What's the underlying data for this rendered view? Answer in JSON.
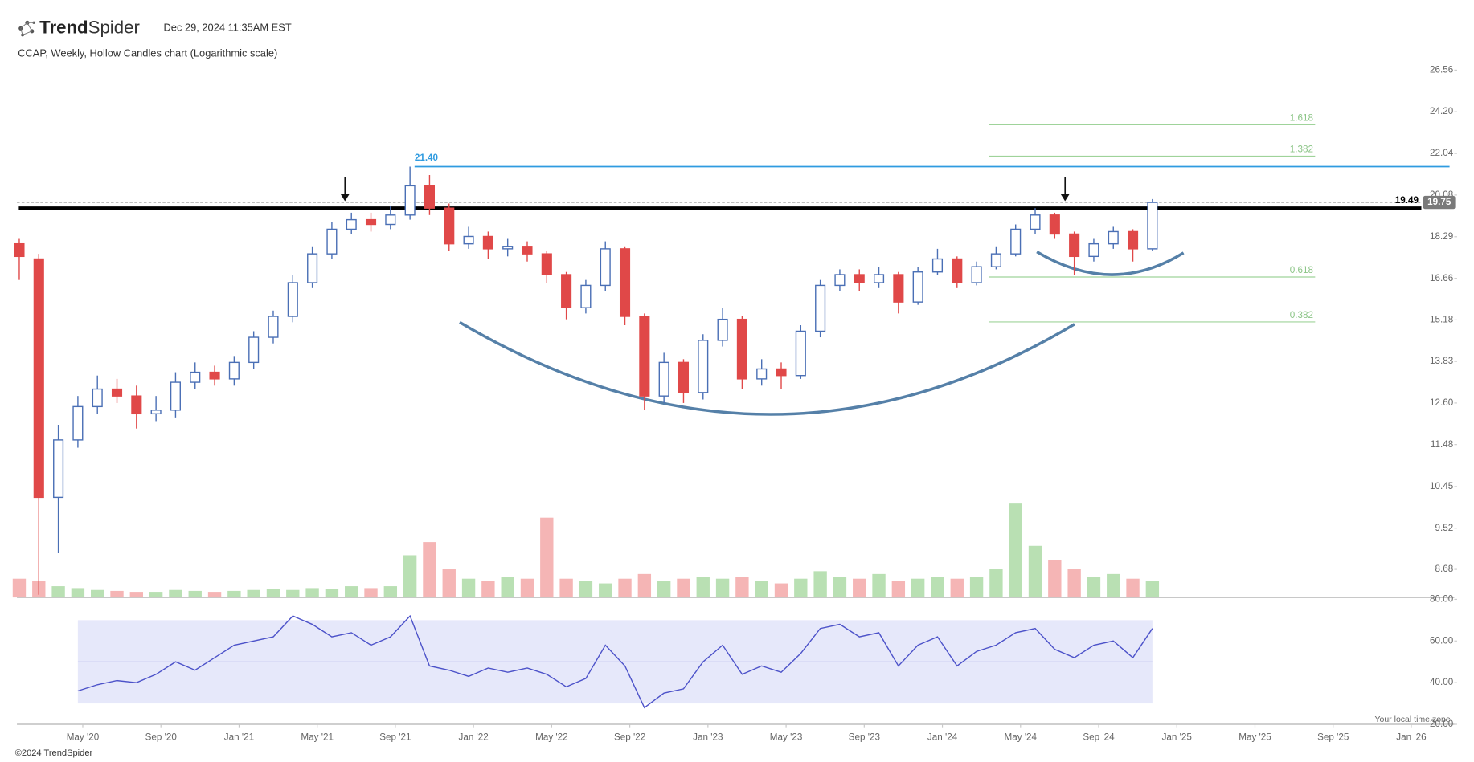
{
  "header": {
    "logo_bold": "Trend",
    "logo_light": "Spider",
    "timestamp": "Dec 29, 2024 11:35AM EST",
    "chart_caption": "CCAP, Weekly, Hollow Candles chart (Logarithmic scale)",
    "copyright": "©2024 TrendSpider",
    "timezone_note": "Your local time zone"
  },
  "chart_data": {
    "type": "candlestick",
    "log_scale": true,
    "up_color": "#4a6fb5",
    "down_color": "#e04848",
    "volume_up_color": "#b9e0b3",
    "volume_down_color": "#f5b5b5",
    "xlim": [
      0.63,
      74.2
    ],
    "xticks": [
      {
        "value": 4,
        "label": "May '20"
      },
      {
        "value": 8,
        "label": "Sep '20"
      },
      {
        "value": 12,
        "label": "Jan '21"
      },
      {
        "value": 16,
        "label": "May '21"
      },
      {
        "value": 20,
        "label": "Sep '21"
      },
      {
        "value": 24,
        "label": "Jan '22"
      },
      {
        "value": 28,
        "label": "May '22"
      },
      {
        "value": 32,
        "label": "Sep '22"
      },
      {
        "value": 36,
        "label": "Jan '23"
      },
      {
        "value": 40,
        "label": "May '23"
      },
      {
        "value": 44,
        "label": "Sep '23"
      },
      {
        "value": 48,
        "label": "Jan '24"
      },
      {
        "value": 52,
        "label": "May '24"
      },
      {
        "value": 56,
        "label": "Sep '24"
      },
      {
        "value": 60,
        "label": "Jan '25"
      },
      {
        "value": 64,
        "label": "May '25"
      },
      {
        "value": 68,
        "label": "Sep '25"
      },
      {
        "value": 72,
        "label": "Jan '26"
      }
    ],
    "ylim": [
      8.15,
      27.1
    ],
    "yticks": [
      26.56,
      {
        "value": 24.2,
        "label": "24.20"
      },
      22.04,
      20.08,
      18.29,
      16.66,
      15.18,
      13.83,
      {
        "value": 12.6,
        "label": "12.60"
      },
      11.48,
      10.45,
      9.52,
      8.68
    ],
    "x": [
      0.75,
      1.75,
      2.75,
      3.75,
      4.75,
      5.75,
      6.75,
      7.75,
      8.75,
      9.75,
      10.75,
      11.75,
      12.75,
      13.75,
      14.75,
      15.75,
      16.75,
      17.75,
      18.75,
      19.75,
      20.75,
      21.75,
      22.75,
      23.75,
      24.75,
      25.75,
      26.75,
      27.75,
      28.75,
      29.75,
      30.75,
      31.75,
      32.75,
      33.75,
      34.75,
      35.75,
      36.75,
      37.75,
      38.75,
      39.75,
      40.75,
      41.75,
      42.75,
      43.75,
      44.75,
      45.75,
      46.75,
      47.75,
      48.75,
      49.75,
      50.75,
      51.75,
      52.75,
      53.75,
      54.75,
      55.75,
      56.75,
      57.75,
      58.75
    ],
    "open": [
      18.0,
      17.4,
      10.2,
      11.6,
      12.5,
      13.0,
      12.8,
      12.3,
      12.4,
      13.2,
      13.5,
      13.3,
      13.8,
      14.6,
      15.3,
      16.5,
      17.6,
      18.6,
      19.0,
      18.8,
      19.2,
      20.5,
      19.5,
      18.0,
      18.3,
      17.8,
      17.9,
      17.6,
      16.8,
      15.6,
      16.4,
      17.8,
      15.3,
      12.8,
      13.8,
      12.9,
      14.5,
      15.2,
      13.3,
      13.6,
      13.4,
      14.8,
      16.4,
      16.8,
      16.5,
      16.8,
      15.8,
      16.9,
      17.4,
      16.5,
      17.1,
      17.6,
      18.6,
      19.2,
      18.4,
      17.5,
      18.0,
      18.5,
      17.8
    ],
    "high": [
      18.2,
      17.6,
      12.0,
      12.8,
      13.4,
      13.3,
      13.1,
      12.8,
      13.5,
      13.8,
      13.7,
      14.0,
      14.8,
      15.5,
      16.8,
      17.9,
      18.9,
      19.3,
      19.3,
      19.6,
      21.4,
      21.0,
      19.7,
      18.7,
      18.5,
      18.2,
      18.1,
      17.7,
      16.9,
      16.6,
      18.1,
      17.9,
      15.4,
      14.1,
      13.9,
      14.7,
      15.6,
      15.3,
      13.9,
      13.8,
      15.0,
      16.6,
      17.0,
      17.0,
      17.1,
      16.9,
      17.1,
      17.8,
      17.5,
      17.3,
      17.9,
      18.8,
      19.5,
      19.3,
      18.5,
      18.2,
      18.7,
      18.6,
      19.9
    ],
    "low": [
      16.6,
      8.2,
      9.0,
      11.4,
      12.3,
      12.6,
      11.9,
      12.1,
      12.2,
      13.0,
      13.1,
      13.1,
      13.6,
      14.4,
      15.1,
      16.3,
      17.4,
      18.4,
      18.5,
      18.6,
      19.0,
      19.2,
      17.7,
      17.8,
      17.4,
      17.5,
      17.3,
      16.5,
      15.2,
      15.4,
      16.2,
      15.0,
      12.4,
      12.6,
      12.6,
      12.7,
      14.3,
      13.0,
      13.1,
      13.0,
      13.3,
      14.6,
      16.2,
      16.2,
      16.3,
      15.4,
      15.7,
      16.8,
      16.3,
      16.4,
      17.0,
      17.5,
      18.4,
      18.2,
      16.8,
      17.3,
      17.8,
      17.3,
      17.7
    ],
    "close": [
      17.5,
      10.2,
      11.6,
      12.5,
      13.0,
      12.8,
      12.3,
      12.4,
      13.2,
      13.5,
      13.3,
      13.8,
      14.6,
      15.3,
      16.5,
      17.6,
      18.6,
      19.0,
      18.8,
      19.2,
      20.5,
      19.5,
      18.0,
      18.3,
      17.8,
      17.9,
      17.6,
      16.8,
      15.6,
      16.4,
      17.8,
      15.3,
      12.8,
      13.8,
      12.9,
      14.5,
      15.2,
      13.3,
      13.6,
      13.4,
      14.8,
      16.4,
      16.8,
      16.5,
      16.8,
      15.8,
      16.9,
      17.4,
      16.5,
      17.1,
      17.6,
      18.6,
      19.2,
      18.4,
      17.5,
      18.0,
      18.5,
      17.8,
      19.75
    ],
    "volume": [
      20,
      18,
      12,
      10,
      8,
      7,
      6,
      6,
      8,
      7,
      6,
      7,
      8,
      9,
      8,
      10,
      9,
      12,
      10,
      12,
      45,
      59,
      30,
      20,
      18,
      22,
      20,
      85,
      20,
      18,
      15,
      20,
      25,
      18,
      20,
      22,
      20,
      22,
      18,
      15,
      20,
      28,
      22,
      20,
      25,
      18,
      20,
      22,
      20,
      22,
      30,
      100,
      55,
      40,
      30,
      22,
      25,
      20,
      18
    ],
    "resistance": 19.49,
    "prior_high": {
      "value": 21.4,
      "label": "21.40"
    },
    "fib_levels": [
      {
        "label": "1.618",
        "value": 23.5
      },
      {
        "label": "1.382",
        "value": 21.91
      },
      {
        "label": "0.618",
        "value": 16.71
      },
      {
        "label": "0.382",
        "value": 15.11
      }
    ],
    "rsi": {
      "color": "#4c52c9",
      "band_color": "#e6e8fa",
      "ylim": [
        20,
        80
      ],
      "yticks": [
        {
          "value": 80,
          "label": "80.00"
        },
        {
          "value": 60,
          "label": "60.00"
        },
        {
          "value": 40,
          "label": "40.00"
        },
        {
          "value": 20,
          "label": "20.00"
        }
      ],
      "band": [
        30,
        70
      ],
      "midline": 50,
      "values": [
        null,
        null,
        null,
        36,
        39,
        41,
        40,
        44,
        50,
        46,
        52,
        58,
        60,
        62,
        72,
        68,
        62,
        64,
        58,
        62,
        72,
        48,
        46,
        43,
        47,
        45,
        47,
        44,
        38,
        42,
        58,
        48,
        28,
        35,
        37,
        50,
        58,
        44,
        48,
        45,
        54,
        66,
        68,
        62,
        64,
        48,
        58,
        62,
        48,
        55,
        58,
        64,
        66,
        56,
        52,
        58,
        60,
        52,
        66
      ]
    }
  }
}
